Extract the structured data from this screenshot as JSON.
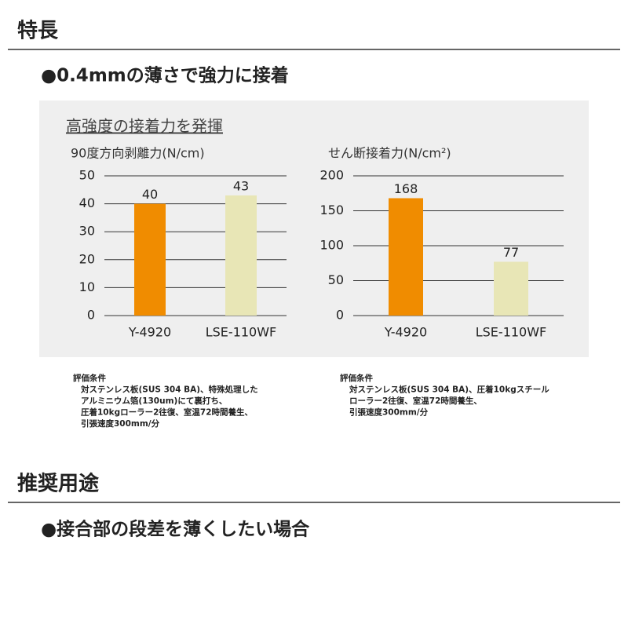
{
  "sections": [
    {
      "heading": "特長",
      "subheading": "●0.4mmの薄さで強力に接着"
    },
    {
      "heading": "推奨用途",
      "subheading": "●接合部の段差を薄くしたい場合"
    }
  ],
  "panel_title": "高強度の接着力を発揮",
  "chart_data": [
    {
      "type": "bar",
      "title": "90度方向剥離力(N/cm)",
      "categories": [
        "Y-4920",
        "LSE-110WF"
      ],
      "values": [
        40,
        43
      ],
      "colors": [
        "#f08c00",
        "#e8e6b6"
      ],
      "ylim": [
        0,
        50
      ],
      "yticks": [
        0,
        10,
        20,
        30,
        40,
        50
      ],
      "grid": true,
      "notes": [
        "評価条件",
        "対ステンレス板(SUS 304 BA)、特殊処理した",
        "アルミニウム箔(130um)にて裏打ち、",
        "圧着10kgローラー2往復、室温72時間養生、",
        "引張速度300mm/分"
      ]
    },
    {
      "type": "bar",
      "title": "せん断接着力(N/cm²)",
      "categories": [
        "Y-4920",
        "LSE-110WF"
      ],
      "values": [
        168,
        77
      ],
      "colors": [
        "#f08c00",
        "#e8e6b6"
      ],
      "ylim": [
        0,
        200
      ],
      "yticks": [
        0,
        50,
        100,
        150,
        200
      ],
      "grid": true,
      "notes": [
        "評価条件",
        "対ステンレス板(SUS 304 BA)、圧着10kgスチール",
        "ローラー2往復、室温72時間養生、",
        "引張速度300mm/分"
      ]
    }
  ]
}
